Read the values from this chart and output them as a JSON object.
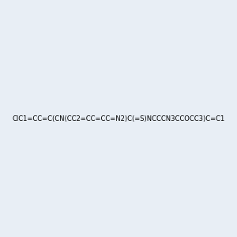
{
  "smiles": "ClC1=CC=C(CN(CC2=CC=CC=N2)C(=S)NCCCN3CCOCC3)C=C1",
  "image_size": 300,
  "background_color": "#e8eef5"
}
